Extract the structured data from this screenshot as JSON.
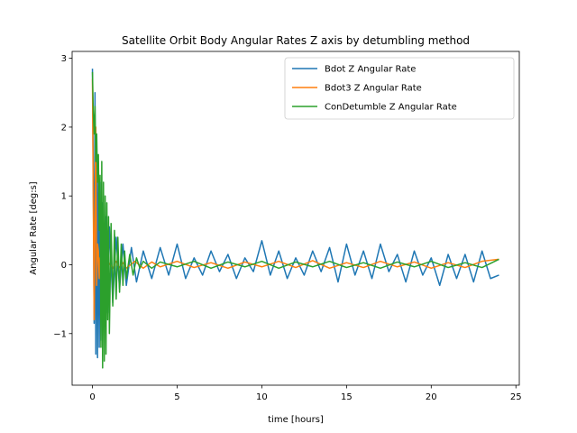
{
  "chart_data": {
    "type": "line",
    "title": "Satellite Orbit Body Angular Rates Z axis by detumbling method",
    "xlabel": "time [hours]",
    "ylabel": "Angular Rate [deg:s]",
    "xlim": [
      -1.2,
      25.2
    ],
    "ylim": [
      -1.75,
      3.1
    ],
    "xticks": [
      0,
      5,
      10,
      15,
      20,
      25
    ],
    "xtick_labels": [
      "0",
      "5",
      "10",
      "15",
      "20",
      "25"
    ],
    "yticks": [
      -1,
      0,
      1,
      2,
      3
    ],
    "ytick_labels": [
      "−1",
      "0",
      "1",
      "2",
      "3"
    ],
    "legend_position": "top-right",
    "series": [
      {
        "name": "Bdot Z Angular Rate",
        "color": "#1f77b4",
        "x": [
          0,
          0.05,
          0.1,
          0.15,
          0.2,
          0.25,
          0.3,
          0.35,
          0.4,
          0.45,
          0.5,
          0.6,
          0.7,
          0.8,
          0.9,
          1.0,
          1.2,
          1.4,
          1.6,
          1.8,
          2.0,
          2.3,
          2.6,
          3.0,
          3.5,
          4.0,
          4.5,
          5.0,
          5.5,
          6.0,
          6.5,
          7.0,
          7.5,
          8.0,
          8.5,
          9.0,
          9.5,
          10.0,
          10.5,
          11.0,
          11.5,
          12.0,
          12.5,
          13.0,
          13.5,
          14.0,
          14.5,
          15.0,
          15.5,
          16.0,
          16.5,
          17.0,
          17.5,
          18.0,
          18.5,
          19.0,
          19.5,
          20.0,
          20.5,
          21.0,
          21.5,
          22.0,
          22.5,
          23.0,
          23.5,
          24.0
        ],
        "y": [
          2.85,
          1.2,
          -0.85,
          2.5,
          -1.3,
          1.8,
          -1.35,
          1.5,
          -1.2,
          1.2,
          -1.1,
          0.9,
          -0.9,
          0.7,
          -0.7,
          0.55,
          -0.55,
          0.4,
          -0.35,
          0.3,
          -0.3,
          0.25,
          -0.25,
          0.2,
          -0.2,
          0.25,
          -0.15,
          0.3,
          -0.2,
          0.1,
          -0.15,
          0.2,
          -0.1,
          0.15,
          -0.2,
          0.1,
          -0.1,
          0.35,
          -0.15,
          0.2,
          -0.2,
          0.1,
          -0.15,
          0.2,
          -0.1,
          0.25,
          -0.25,
          0.3,
          -0.15,
          0.2,
          -0.2,
          0.3,
          -0.1,
          0.15,
          -0.25,
          0.2,
          -0.15,
          0.1,
          -0.3,
          0.15,
          -0.2,
          0.15,
          -0.25,
          0.2,
          -0.2,
          -0.15
        ]
      },
      {
        "name": "Bdot3 Z Angular Rate",
        "color": "#ff7f0e",
        "x": [
          0,
          0.05,
          0.1,
          0.15,
          0.2,
          0.25,
          0.3,
          0.35,
          0.4,
          0.45,
          0.5,
          0.6,
          0.7,
          0.8,
          0.9,
          1.0,
          1.2,
          1.4,
          1.6,
          1.8,
          2.0,
          2.5,
          3.0,
          3.5,
          4.0,
          5.0,
          6.0,
          7.0,
          8.0,
          9.0,
          10.0,
          11.0,
          12.0,
          13.0,
          14.0,
          15.0,
          16.0,
          17.0,
          18.0,
          19.0,
          20.0,
          21.0,
          22.0,
          23.0,
          24.0
        ],
        "y": [
          2.7,
          0.9,
          -0.8,
          0.6,
          2.0,
          -0.3,
          0.3,
          0.2,
          -0.2,
          0.1,
          0.05,
          -0.1,
          0.08,
          -0.05,
          0.05,
          0.02,
          -0.05,
          0.05,
          -0.04,
          0.03,
          -0.05,
          0.05,
          -0.05,
          0.04,
          -0.03,
          0.05,
          -0.04,
          0.03,
          -0.05,
          0.04,
          -0.03,
          0.05,
          -0.04,
          0.06,
          -0.05,
          0.03,
          -0.04,
          0.05,
          -0.03,
          0.04,
          -0.05,
          0.03,
          -0.04,
          0.05,
          0.08
        ]
      },
      {
        "name": "ConDetumble Z Angular Rate",
        "color": "#2ca02c",
        "x": [
          0,
          0.05,
          0.1,
          0.15,
          0.2,
          0.25,
          0.3,
          0.35,
          0.4,
          0.45,
          0.5,
          0.55,
          0.6,
          0.65,
          0.7,
          0.75,
          0.8,
          0.85,
          0.9,
          0.95,
          1.0,
          1.1,
          1.2,
          1.3,
          1.4,
          1.5,
          1.6,
          1.7,
          1.8,
          1.9,
          2.0,
          2.2,
          2.4,
          2.6,
          2.8,
          3.0,
          3.5,
          4.0,
          5.0,
          6.0,
          7.0,
          8.0,
          9.0,
          10.0,
          11.0,
          12.0,
          13.0,
          14.0,
          15.0,
          16.0,
          17.0,
          18.0,
          19.0,
          20.0,
          21.0,
          22.0,
          23.0,
          24.0
        ],
        "y": [
          2.8,
          2.2,
          1.9,
          2.3,
          1.5,
          1.9,
          1.2,
          1.6,
          0.5,
          1.3,
          -1.2,
          1.5,
          -1.5,
          1.2,
          -1.4,
          1.0,
          -1.3,
          0.9,
          -0.8,
          0.7,
          -1.0,
          0.6,
          -0.6,
          0.5,
          -0.5,
          0.4,
          -0.4,
          0.3,
          -0.3,
          0.2,
          -0.2,
          0.15,
          -0.15,
          0.1,
          -0.05,
          0.05,
          -0.05,
          0.04,
          -0.03,
          0.05,
          -0.05,
          0.04,
          -0.03,
          0.05,
          -0.05,
          0.04,
          -0.03,
          0.05,
          -0.04,
          0.03,
          -0.05,
          0.04,
          -0.03,
          0.05,
          -0.04,
          0.03,
          -0.04,
          0.08
        ]
      }
    ]
  }
}
